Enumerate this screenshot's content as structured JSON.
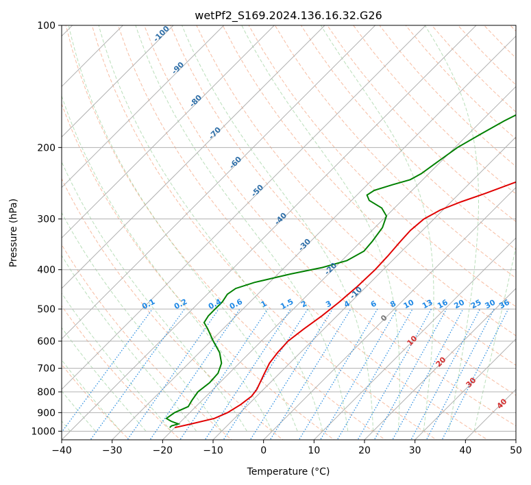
{
  "chart_data": {
    "type": "line",
    "title": "wetPf2_S169.2024.136.16.32.G26",
    "xlabel": "Temperature (°C)",
    "ylabel": "Pressure (hPa)",
    "xlim": [
      -40,
      50
    ],
    "ylim": [
      1050,
      100
    ],
    "y_scale": "log",
    "x_ticks": [
      "-40",
      "-30",
      "-20",
      "-10",
      "0",
      "10",
      "20",
      "30",
      "40",
      "50"
    ],
    "y_ticks": [
      "100",
      "200",
      "300",
      "400",
      "500",
      "600",
      "700",
      "800",
      "900",
      "1000"
    ],
    "grid": true,
    "skew": "skew-T",
    "series": [
      {
        "name": "",
        "color": "#e00000",
        "points": [
          [
            -20.0,
            980
          ],
          [
            -17.5,
            960
          ],
          [
            -14.0,
            930
          ],
          [
            -12.5,
            900
          ],
          [
            -11.5,
            860
          ],
          [
            -11.0,
            820
          ],
          [
            -11.3,
            790
          ],
          [
            -12.0,
            760
          ],
          [
            -13.0,
            720
          ],
          [
            -14.0,
            680
          ],
          [
            -14.5,
            640
          ],
          [
            -14.7,
            600
          ],
          [
            -14.0,
            560
          ],
          [
            -13.0,
            520
          ],
          [
            -12.3,
            480
          ],
          [
            -11.8,
            440
          ],
          [
            -11.6,
            400
          ],
          [
            -11.8,
            370
          ],
          [
            -12.2,
            340
          ],
          [
            -12.4,
            320
          ],
          [
            -12.0,
            300
          ],
          [
            -10.5,
            285
          ],
          [
            -8.0,
            272
          ],
          [
            -5.0,
            260
          ],
          [
            -1.5,
            245
          ],
          [
            3.0,
            227
          ],
          [
            8.0,
            210
          ],
          [
            13.5,
            192
          ],
          [
            19.0,
            175
          ],
          [
            24.0,
            160
          ],
          [
            28.5,
            147
          ],
          [
            32.0,
            136
          ],
          [
            35.0,
            126
          ],
          [
            38.5,
            115
          ],
          [
            41.5,
            106
          ],
          [
            43.5,
            100
          ]
        ]
      },
      {
        "name": "",
        "color": "#008000",
        "points": [
          [
            -21.0,
            980
          ],
          [
            -21.0,
            970
          ],
          [
            -20.0,
            960
          ],
          [
            -22.0,
            945
          ],
          [
            -23.5,
            930
          ],
          [
            -23.0,
            900
          ],
          [
            -21.5,
            870
          ],
          [
            -22.0,
            840
          ],
          [
            -22.5,
            800
          ],
          [
            -22.0,
            760
          ],
          [
            -22.2,
            720
          ],
          [
            -23.5,
            680
          ],
          [
            -26.0,
            640
          ],
          [
            -29.5,
            600
          ],
          [
            -33.0,
            560
          ],
          [
            -35.0,
            540
          ],
          [
            -35.5,
            520
          ],
          [
            -35.5,
            500
          ],
          [
            -35.5,
            480
          ],
          [
            -36.0,
            460
          ],
          [
            -35.5,
            445
          ],
          [
            -33.0,
            430
          ],
          [
            -27.5,
            410
          ],
          [
            -22.5,
            395
          ],
          [
            -19.0,
            380
          ],
          [
            -17.5,
            360
          ],
          [
            -17.8,
            340
          ],
          [
            -18.5,
            315
          ],
          [
            -20.0,
            295
          ],
          [
            -22.5,
            282
          ],
          [
            -26.5,
            270
          ],
          [
            -28.0,
            262
          ],
          [
            -27.5,
            255
          ],
          [
            -25.0,
            247
          ],
          [
            -22.5,
            240
          ],
          [
            -21.5,
            232
          ],
          [
            -20.5,
            215
          ],
          [
            -19.5,
            200
          ],
          [
            -17.5,
            185
          ],
          [
            -15.5,
            172
          ],
          [
            -13.0,
            160
          ],
          [
            -9.5,
            148
          ],
          [
            -6.5,
            137
          ],
          [
            -3.5,
            126
          ],
          [
            -1.0,
            117
          ],
          [
            1.5,
            109
          ],
          [
            4.0,
            101
          ],
          [
            4.5,
            100
          ]
        ]
      }
    ],
    "dry_adiabat_labels": [
      "-100",
      "-90",
      "-80",
      "-70",
      "-60",
      "-50",
      "-40",
      "-30",
      "-20",
      "-10",
      "0",
      "10",
      "20",
      "30",
      "40"
    ],
    "mixing_ratio_labels": [
      "0.1",
      "0.2",
      "0.4",
      "0.6",
      "1",
      "1.5",
      "2",
      "3",
      "4",
      "6",
      "8",
      "10",
      "13",
      "16",
      "20",
      "25",
      "30",
      "36"
    ]
  }
}
